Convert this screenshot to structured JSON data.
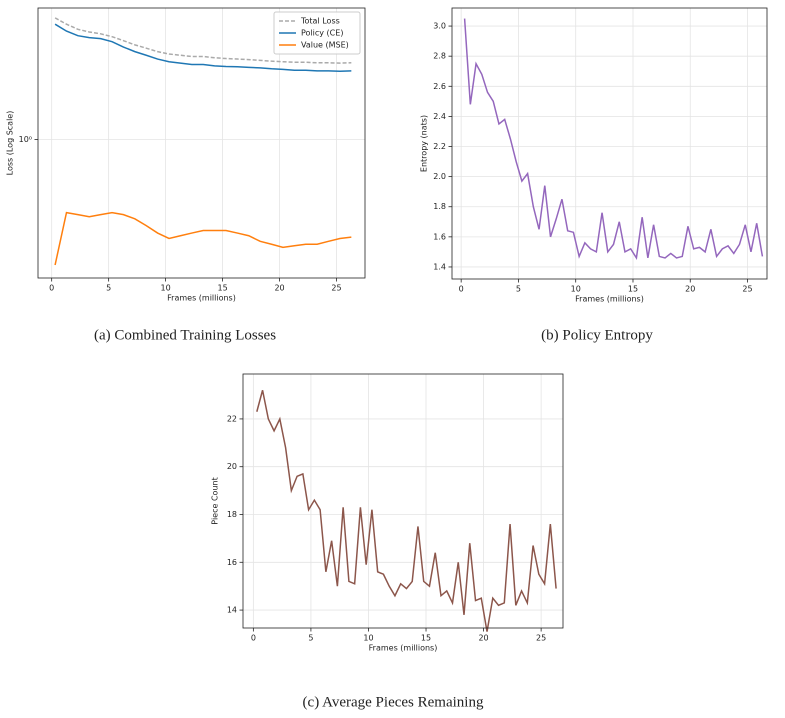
{
  "chart_data": [
    {
      "type": "line",
      "caption": "(a) Combined Training Losses",
      "xlabel": "Frames (millions)",
      "ylabel": "Loss (Log Scale)",
      "log_y": true,
      "grid": true,
      "legend": "upper right",
      "xlim": [
        -1.2,
        27.5
      ],
      "xticks": [
        0,
        5,
        10,
        15,
        20,
        25
      ],
      "ylim": [
        0.16,
        5.7
      ],
      "yticks": [
        {
          "value": 1,
          "label": "10⁰"
        }
      ],
      "x": [
        0.3,
        1.3,
        2.3,
        3.3,
        4.3,
        5.3,
        6.3,
        7.3,
        8.3,
        9.3,
        10.3,
        11.3,
        12.3,
        13.3,
        14.3,
        15.3,
        16.3,
        17.3,
        18.3,
        19.3,
        20.3,
        21.3,
        22.3,
        23.3,
        24.3,
        25.3,
        26.3
      ],
      "series": [
        {
          "name": "Total Loss",
          "color": "#aaaaaa",
          "linestyle": "dashed",
          "values": [
            5.0,
            4.6,
            4.3,
            4.15,
            4.05,
            3.9,
            3.7,
            3.5,
            3.35,
            3.2,
            3.1,
            3.05,
            3.0,
            3.0,
            2.95,
            2.92,
            2.9,
            2.88,
            2.85,
            2.82,
            2.8,
            2.78,
            2.78,
            2.76,
            2.76,
            2.75,
            2.76
          ]
        },
        {
          "name": "Policy (CE)",
          "color": "#1f77b4",
          "linestyle": "solid",
          "values": [
            4.6,
            4.2,
            3.95,
            3.85,
            3.8,
            3.65,
            3.4,
            3.2,
            3.05,
            2.9,
            2.8,
            2.75,
            2.7,
            2.7,
            2.65,
            2.63,
            2.62,
            2.6,
            2.58,
            2.55,
            2.53,
            2.5,
            2.5,
            2.48,
            2.48,
            2.47,
            2.48
          ]
        },
        {
          "name": "Value (MSE)",
          "color": "#ff7f0e",
          "linestyle": "solid",
          "values": [
            0.19,
            0.38,
            0.37,
            0.36,
            0.37,
            0.38,
            0.37,
            0.35,
            0.32,
            0.29,
            0.27,
            0.28,
            0.29,
            0.3,
            0.3,
            0.3,
            0.29,
            0.28,
            0.26,
            0.25,
            0.24,
            0.245,
            0.25,
            0.25,
            0.26,
            0.27,
            0.275
          ]
        }
      ]
    },
    {
      "type": "line",
      "caption": "(b) Policy Entropy",
      "xlabel": "Frames (millions)",
      "ylabel": "Entropy (nats)",
      "log_y": false,
      "grid": true,
      "color": "#9467bd",
      "xlim": [
        -0.8,
        26.7
      ],
      "xticks": [
        0,
        5,
        10,
        15,
        20,
        25
      ],
      "ylim": [
        1.32,
        3.12
      ],
      "yticks": [
        1.4,
        1.6,
        1.8,
        {
          "value": 2,
          "label": "2.0"
        },
        2.2,
        2.4,
        2.6,
        2.8,
        {
          "value": 3,
          "label": "3.0"
        }
      ],
      "x": [
        0.3,
        0.8,
        1.3,
        1.8,
        2.3,
        2.8,
        3.3,
        3.8,
        4.3,
        4.8,
        5.3,
        5.8,
        6.3,
        6.8,
        7.3,
        7.8,
        8.3,
        8.8,
        9.3,
        9.8,
        10.3,
        10.8,
        11.3,
        11.8,
        12.3,
        12.8,
        13.3,
        13.8,
        14.3,
        14.8,
        15.3,
        15.8,
        16.3,
        16.8,
        17.3,
        17.8,
        18.3,
        18.8,
        19.3,
        19.8,
        20.3,
        20.8,
        21.3,
        21.8,
        22.3,
        22.8,
        23.3,
        23.8,
        24.3,
        24.8,
        25.3,
        25.8,
        26.3
      ],
      "values": [
        3.05,
        2.48,
        2.75,
        2.68,
        2.56,
        2.5,
        2.35,
        2.38,
        2.25,
        2.1,
        1.97,
        2.02,
        1.8,
        1.65,
        1.94,
        1.6,
        1.72,
        1.85,
        1.64,
        1.63,
        1.47,
        1.56,
        1.52,
        1.5,
        1.76,
        1.5,
        1.55,
        1.7,
        1.5,
        1.52,
        1.46,
        1.73,
        1.46,
        1.68,
        1.47,
        1.46,
        1.49,
        1.46,
        1.47,
        1.67,
        1.52,
        1.53,
        1.5,
        1.65,
        1.47,
        1.52,
        1.54,
        1.49,
        1.55,
        1.68,
        1.5,
        1.69,
        1.47
      ]
    },
    {
      "type": "line",
      "caption": "(c) Average Pieces Remaining",
      "xlabel": "Frames (millions)",
      "ylabel": "Piece Count",
      "log_y": false,
      "grid": true,
      "color": "#8c564b",
      "xlim": [
        -0.9,
        26.9
      ],
      "xticks": [
        0,
        5,
        10,
        15,
        20,
        25
      ],
      "ylim": [
        13.25,
        23.88
      ],
      "yticks": [
        14,
        16,
        18,
        20,
        22
      ],
      "x": [
        0.3,
        0.8,
        1.3,
        1.8,
        2.3,
        2.8,
        3.3,
        3.8,
        4.3,
        4.8,
        5.3,
        5.8,
        6.3,
        6.8,
        7.3,
        7.8,
        8.3,
        8.8,
        9.3,
        9.8,
        10.3,
        10.8,
        11.3,
        11.8,
        12.3,
        12.8,
        13.3,
        13.8,
        14.3,
        14.8,
        15.3,
        15.8,
        16.3,
        16.8,
        17.3,
        17.8,
        18.3,
        18.8,
        19.3,
        19.8,
        20.3,
        20.8,
        21.3,
        21.8,
        22.3,
        22.8,
        23.3,
        23.8,
        24.3,
        24.8,
        25.3,
        25.8,
        26.3
      ],
      "values": [
        22.3,
        23.2,
        22.0,
        21.5,
        22.0,
        20.8,
        19.0,
        19.6,
        19.7,
        18.2,
        18.6,
        18.2,
        15.6,
        16.9,
        15.0,
        18.3,
        15.2,
        15.1,
        18.3,
        15.9,
        18.2,
        15.6,
        15.5,
        15.0,
        14.6,
        15.1,
        14.9,
        15.2,
        17.5,
        15.2,
        15.0,
        16.4,
        14.6,
        14.8,
        14.3,
        16.0,
        13.8,
        16.8,
        14.4,
        14.5,
        13.1,
        14.5,
        14.2,
        14.3,
        17.6,
        14.2,
        14.8,
        14.3,
        16.7,
        15.5,
        15.1,
        17.6,
        14.9
      ]
    }
  ]
}
